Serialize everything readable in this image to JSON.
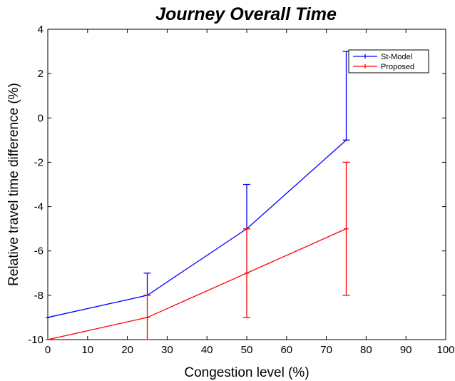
{
  "chart_data": {
    "type": "line",
    "title": "Journey Overall Time",
    "xlabel": "Congestion level (%)",
    "ylabel": "Relative travel time difference (%)",
    "xlim": [
      0,
      100
    ],
    "ylim": [
      -10,
      4
    ],
    "xticks": [
      0,
      10,
      20,
      30,
      40,
      50,
      60,
      70,
      80,
      90,
      100
    ],
    "yticks": [
      -10,
      -8,
      -6,
      -4,
      -2,
      0,
      2,
      4
    ],
    "grid": false,
    "legend_position": "top-right",
    "series": [
      {
        "name": "St-Model",
        "color": "#0000ff",
        "x": [
          0,
          25,
          50,
          75
        ],
        "y": [
          -9,
          -8,
          -5,
          -1
        ],
        "error_low": [
          null,
          -8,
          -5,
          -1
        ],
        "error_high": [
          null,
          -7,
          -3,
          3
        ]
      },
      {
        "name": "Proposed",
        "color": "#ff0000",
        "x": [
          0,
          25,
          50,
          75
        ],
        "y": [
          -10,
          -9,
          -7,
          -5
        ],
        "error_low": [
          null,
          -10,
          -9,
          -8
        ],
        "error_high": [
          null,
          -8,
          -5,
          -2
        ]
      }
    ]
  }
}
